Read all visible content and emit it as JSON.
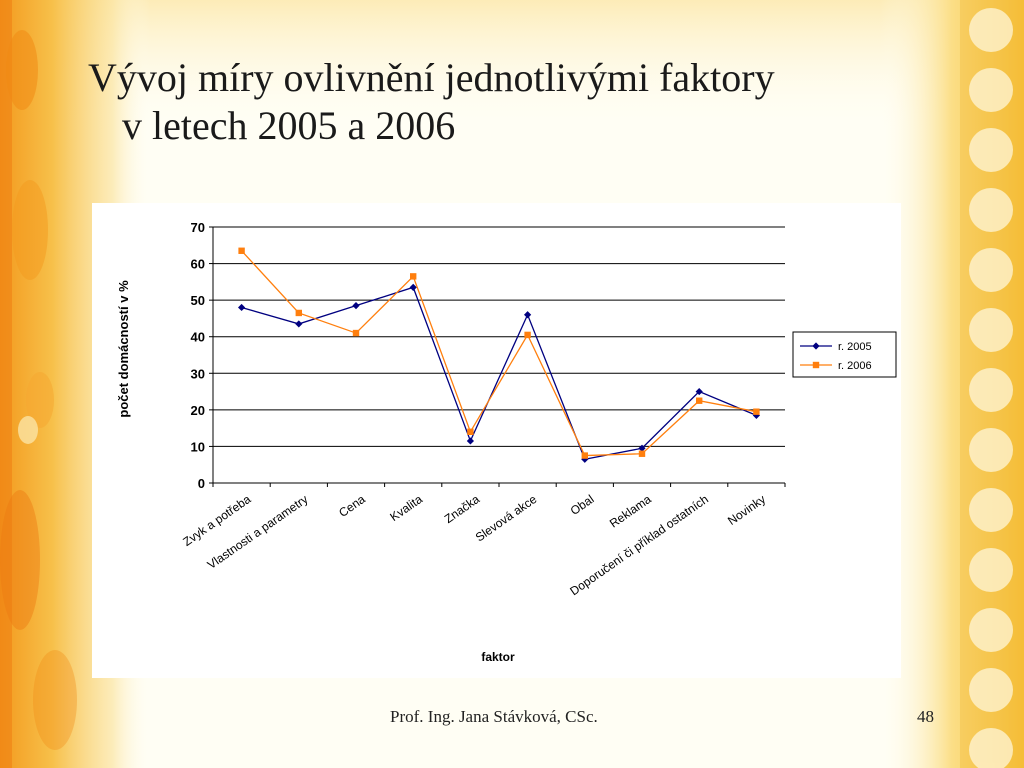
{
  "slide": {
    "title_line1": "Vývoj míry ovlivnění jednotlivými faktory",
    "title_line2": "v letech 2005 a 2006",
    "footer_author": "Prof. Ing. Jana Stávková, CSc.",
    "page_number": "48"
  },
  "colors": {
    "series_2005": "#000080",
    "series_2006": "#ff7f0e",
    "decor_orange": "#f2a51c"
  },
  "chart_data": {
    "type": "line",
    "xlabel": "faktor",
    "ylabel": "počet domácností v %",
    "ylim": [
      0,
      70
    ],
    "yticks": [
      0,
      10,
      20,
      30,
      40,
      50,
      60,
      70
    ],
    "grid": true,
    "legend_position": "right",
    "categories": [
      "Zvyk a potřeba",
      "Vlastnosti a parametry",
      "Cena",
      "Kvalita",
      "Značka",
      "Slevová akce",
      "Obal",
      "Reklama",
      "Doporučení či příklad ostatních",
      "Novinky"
    ],
    "series": [
      {
        "name": "r. 2005",
        "marker": "diamond",
        "values": [
          48,
          43.5,
          48.5,
          53.5,
          11.5,
          46,
          6.5,
          9.5,
          25,
          18.5
        ]
      },
      {
        "name": "r. 2006",
        "marker": "square",
        "values": [
          63.5,
          46.5,
          41,
          56.5,
          14,
          40.5,
          7.5,
          8,
          22.5,
          19.5
        ]
      }
    ]
  }
}
